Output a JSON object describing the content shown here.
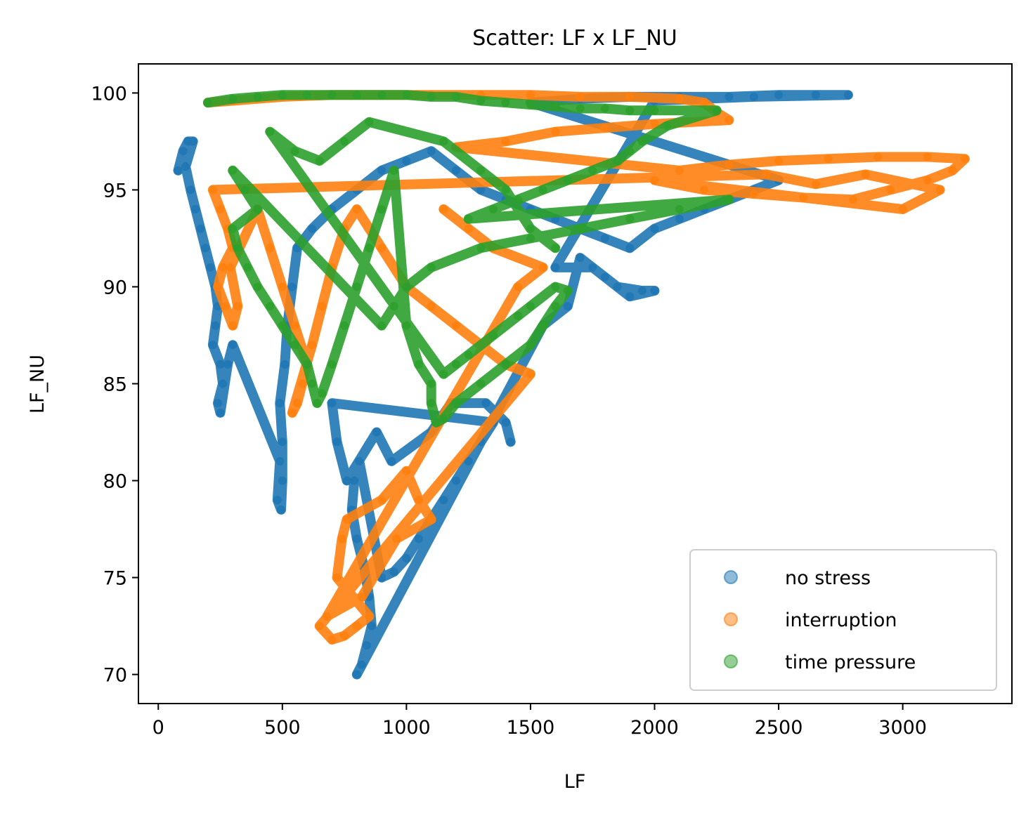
{
  "chart_data": {
    "type": "scatter",
    "title": "Scatter: LF x LF_NU",
    "xlabel": "LF",
    "ylabel": "LF_NU",
    "xlim": [
      -80,
      3440
    ],
    "ylim": [
      68.5,
      101.5
    ],
    "xticks": [
      0,
      500,
      1000,
      1500,
      2000,
      2500,
      3000
    ],
    "yticks": [
      70,
      75,
      80,
      85,
      90,
      95,
      100
    ],
    "legend_position": "lower-right",
    "series": [
      {
        "name": "no stress",
        "color": "#1f77b4",
        "points": [
          [
            80,
            96
          ],
          [
            100,
            97
          ],
          [
            120,
            97.5
          ],
          [
            140,
            97.5
          ],
          [
            110,
            96.2
          ],
          [
            130,
            95
          ],
          [
            150,
            94
          ],
          [
            170,
            93
          ],
          [
            190,
            92
          ],
          [
            210,
            91
          ],
          [
            230,
            90
          ],
          [
            240,
            89
          ],
          [
            230,
            88
          ],
          [
            220,
            87
          ],
          [
            250,
            86
          ],
          [
            260,
            85
          ],
          [
            240,
            84
          ],
          [
            250,
            83.5
          ],
          [
            280,
            86
          ],
          [
            300,
            87
          ],
          [
            490,
            81
          ],
          [
            480,
            79
          ],
          [
            495,
            78.5
          ],
          [
            500,
            80
          ],
          [
            500,
            82
          ],
          [
            490,
            84
          ],
          [
            510,
            86
          ],
          [
            520,
            88
          ],
          [
            540,
            90
          ],
          [
            560,
            92
          ],
          [
            620,
            93
          ],
          [
            700,
            94
          ],
          [
            800,
            95
          ],
          [
            900,
            96
          ],
          [
            1000,
            96.5
          ],
          [
            1100,
            97
          ],
          [
            1200,
            96
          ],
          [
            1300,
            95
          ],
          [
            1400,
            94.5
          ],
          [
            1500,
            94
          ],
          [
            1600,
            93.5
          ],
          [
            1700,
            93
          ],
          [
            1800,
            92.5
          ],
          [
            1900,
            92
          ],
          [
            2000,
            93
          ],
          [
            2100,
            93.5
          ],
          [
            2200,
            94
          ],
          [
            2300,
            94.5
          ],
          [
            2400,
            95
          ],
          [
            2500,
            95.5
          ],
          [
            1500,
            99.5
          ],
          [
            1700,
            99.7
          ],
          [
            1900,
            99.8
          ],
          [
            2100,
            99.8
          ],
          [
            2300,
            99.8
          ],
          [
            2500,
            99.9
          ],
          [
            2650,
            99.9
          ],
          [
            2780,
            99.9
          ],
          [
            2400,
            99.8
          ],
          [
            2000,
            99.6
          ],
          [
            1600,
            91
          ],
          [
            1750,
            91
          ],
          [
            1850,
            90
          ],
          [
            1950,
            89.8
          ],
          [
            2000,
            89.8
          ],
          [
            1900,
            89.5
          ],
          [
            1800,
            90.5
          ],
          [
            1700,
            91.5
          ],
          [
            1650,
            89
          ],
          [
            1550,
            88
          ],
          [
            800,
            70
          ],
          [
            820,
            70.5
          ],
          [
            840,
            71.5
          ],
          [
            860,
            72.5
          ],
          [
            850,
            74
          ],
          [
            830,
            75.5
          ],
          [
            800,
            77
          ],
          [
            780,
            78.5
          ],
          [
            790,
            80
          ],
          [
            810,
            81
          ],
          [
            900,
            75
          ],
          [
            950,
            75.3
          ],
          [
            1000,
            76
          ],
          [
            1050,
            77
          ],
          [
            1100,
            78
          ],
          [
            1150,
            79
          ],
          [
            1200,
            80
          ],
          [
            1250,
            81
          ],
          [
            1300,
            82
          ],
          [
            1350,
            83
          ],
          [
            700,
            84
          ],
          [
            720,
            82
          ],
          [
            760,
            80
          ],
          [
            880,
            82.5
          ],
          [
            940,
            81
          ],
          [
            1100,
            82.5
          ],
          [
            1180,
            84
          ],
          [
            1320,
            84
          ],
          [
            1400,
            83
          ],
          [
            1420,
            82
          ]
        ]
      },
      {
        "name": "interruption",
        "color": "#ff7f0e",
        "points": [
          [
            200,
            99.5
          ],
          [
            300,
            99.6
          ],
          [
            400,
            99.7
          ],
          [
            500,
            99.8
          ],
          [
            700,
            99.9
          ],
          [
            900,
            99.9
          ],
          [
            1100,
            99.9
          ],
          [
            1300,
            99.9
          ],
          [
            1500,
            99.9
          ],
          [
            1700,
            99.8
          ],
          [
            1900,
            99.8
          ],
          [
            2100,
            99.7
          ],
          [
            2200,
            99.5
          ],
          [
            2250,
            99
          ],
          [
            2300,
            98.6
          ],
          [
            2000,
            98.4
          ],
          [
            1800,
            98.2
          ],
          [
            1600,
            98
          ],
          [
            1400,
            97.5
          ],
          [
            1200,
            97.2
          ],
          [
            2100,
            96
          ],
          [
            2300,
            96.3
          ],
          [
            2500,
            96.5
          ],
          [
            2700,
            96.6
          ],
          [
            2900,
            96.7
          ],
          [
            3100,
            96.7
          ],
          [
            3250,
            96.6
          ],
          [
            3200,
            96
          ],
          [
            3100,
            95.5
          ],
          [
            2950,
            95
          ],
          [
            2800,
            94.5
          ],
          [
            2600,
            94.6
          ],
          [
            2400,
            94.8
          ],
          [
            2200,
            95
          ],
          [
            2000,
            95.5
          ],
          [
            3000,
            94
          ],
          [
            3150,
            95
          ],
          [
            2850,
            95.8
          ],
          [
            2650,
            95.3
          ],
          [
            2450,
            95.8
          ],
          [
            220,
            95
          ],
          [
            250,
            94
          ],
          [
            280,
            93
          ],
          [
            300,
            92
          ],
          [
            260,
            91
          ],
          [
            240,
            90
          ],
          [
            270,
            89
          ],
          [
            300,
            88
          ],
          [
            320,
            89
          ],
          [
            290,
            91
          ],
          [
            400,
            94
          ],
          [
            450,
            92
          ],
          [
            500,
            90
          ],
          [
            550,
            88
          ],
          [
            600,
            86
          ],
          [
            580,
            85
          ],
          [
            560,
            84
          ],
          [
            540,
            83.5
          ],
          [
            620,
            87
          ],
          [
            660,
            89
          ],
          [
            700,
            91
          ],
          [
            750,
            93
          ],
          [
            800,
            94
          ],
          [
            900,
            92
          ],
          [
            1000,
            90
          ],
          [
            1100,
            89
          ],
          [
            1200,
            88
          ],
          [
            1300,
            87
          ],
          [
            1400,
            86
          ],
          [
            1500,
            85.5
          ],
          [
            650,
            72.5
          ],
          [
            700,
            71.8
          ],
          [
            750,
            72
          ],
          [
            800,
            72.5
          ],
          [
            850,
            73
          ],
          [
            720,
            75
          ],
          [
            740,
            77
          ],
          [
            760,
            78
          ],
          [
            900,
            79
          ],
          [
            1000,
            80.5
          ],
          [
            1050,
            79
          ],
          [
            1100,
            78
          ],
          [
            960,
            77
          ],
          [
            820,
            74
          ],
          [
            680,
            73
          ],
          [
            1450,
            90
          ],
          [
            1550,
            91
          ],
          [
            1350,
            92
          ],
          [
            1250,
            93
          ],
          [
            1150,
            94
          ]
        ]
      },
      {
        "name": "time pressure",
        "color": "#2ca02c",
        "points": [
          [
            200,
            99.5
          ],
          [
            300,
            99.7
          ],
          [
            400,
            99.8
          ],
          [
            500,
            99.9
          ],
          [
            600,
            99.9
          ],
          [
            700,
            99.9
          ],
          [
            800,
            99.9
          ],
          [
            900,
            99.9
          ],
          [
            1000,
            99.9
          ],
          [
            1100,
            99.8
          ],
          [
            1200,
            99.8
          ],
          [
            1300,
            99.6
          ],
          [
            1400,
            99.5
          ],
          [
            1500,
            99.4
          ],
          [
            1600,
            99.3
          ],
          [
            1700,
            99.2
          ],
          [
            1800,
            99.2
          ],
          [
            1900,
            99.1
          ],
          [
            2000,
            99.1
          ],
          [
            2250,
            99.1
          ],
          [
            2050,
            98.3
          ],
          [
            1950,
            97.5
          ],
          [
            1900,
            97
          ],
          [
            1850,
            96.5
          ],
          [
            1750,
            96
          ],
          [
            1650,
            95.5
          ],
          [
            1550,
            95
          ],
          [
            1450,
            94.5
          ],
          [
            1350,
            94
          ],
          [
            1250,
            93.5
          ],
          [
            2300,
            94.5
          ],
          [
            2100,
            94
          ],
          [
            1900,
            93.5
          ],
          [
            1700,
            93
          ],
          [
            1500,
            92.5
          ],
          [
            1300,
            92
          ],
          [
            1100,
            91
          ],
          [
            1000,
            90
          ],
          [
            950,
            89
          ],
          [
            900,
            88
          ],
          [
            300,
            96
          ],
          [
            350,
            95
          ],
          [
            400,
            94
          ],
          [
            300,
            93
          ],
          [
            320,
            92
          ],
          [
            360,
            91
          ],
          [
            400,
            90
          ],
          [
            450,
            89
          ],
          [
            500,
            88
          ],
          [
            550,
            87
          ],
          [
            600,
            86
          ],
          [
            620,
            85
          ],
          [
            640,
            84
          ],
          [
            660,
            84.5
          ],
          [
            700,
            86
          ],
          [
            750,
            88
          ],
          [
            800,
            90
          ],
          [
            850,
            92
          ],
          [
            900,
            94
          ],
          [
            950,
            96
          ],
          [
            1000,
            88
          ],
          [
            1050,
            86
          ],
          [
            1100,
            85
          ],
          [
            1100,
            84
          ],
          [
            1120,
            83
          ],
          [
            1150,
            83.2
          ],
          [
            1200,
            84
          ],
          [
            1300,
            85
          ],
          [
            1400,
            86
          ],
          [
            1500,
            87
          ],
          [
            1550,
            88
          ],
          [
            1600,
            89
          ],
          [
            1650,
            89.8
          ],
          [
            1600,
            90
          ],
          [
            1500,
            89
          ],
          [
            1450,
            88.5
          ],
          [
            1350,
            87.5
          ],
          [
            1250,
            86.5
          ],
          [
            1200,
            86
          ],
          [
            1150,
            85.5
          ],
          [
            450,
            98
          ],
          [
            550,
            97
          ],
          [
            650,
            96.5
          ],
          [
            750,
            97.5
          ],
          [
            850,
            98.5
          ],
          [
            1150,
            97.5
          ],
          [
            1300,
            96
          ],
          [
            1400,
            95
          ],
          [
            1500,
            93
          ],
          [
            1600,
            92
          ]
        ]
      }
    ]
  }
}
